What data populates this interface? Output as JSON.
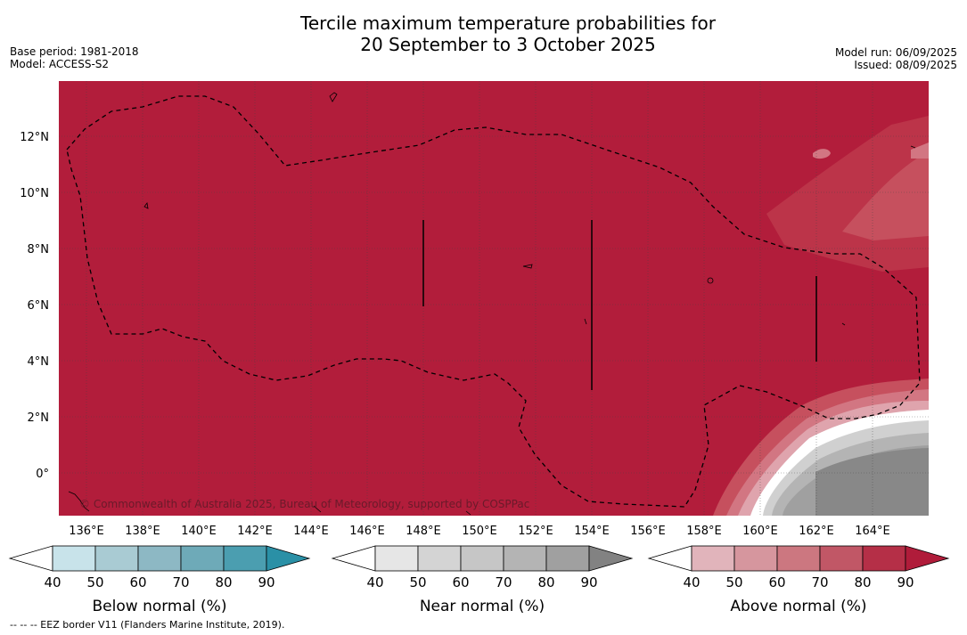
{
  "title_line1": "Tercile maximum temperature probabilities for",
  "title_line2": "20 September to 3 October 2025",
  "meta_left": {
    "base_period": "Base period: 1981-2018",
    "model": "Model: ACCESS-S2"
  },
  "meta_right": {
    "model_run": "Model run: 06/09/2025",
    "issued": "Issued: 08/09/2025"
  },
  "map": {
    "lat_ticks": [
      "12°N",
      "10°N",
      "8°N",
      "6°N",
      "4°N",
      "2°N",
      "0°"
    ],
    "lon_ticks": [
      "136°E",
      "138°E",
      "140°E",
      "142°E",
      "144°E",
      "146°E",
      "148°E",
      "150°E",
      "152°E",
      "154°E",
      "156°E",
      "158°E",
      "160°E",
      "162°E",
      "164°E"
    ],
    "copyright": "© Commonwealth of Australia 2025, Bureau of Meteorology, supported by COSPPac",
    "dominant_category": "Above normal",
    "dominant_probability_band": "80-90"
  },
  "colorbars": [
    {
      "title": "Below normal (%)",
      "ticks": [
        "40",
        "50",
        "60",
        "70",
        "80",
        "90"
      ],
      "colors": [
        "#ffffff",
        "#c8e3ea",
        "#a9cbd3",
        "#8db8c4",
        "#6eaab8",
        "#4b9eb0",
        "#2a90a6"
      ]
    },
    {
      "title": "Near normal (%)",
      "ticks": [
        "40",
        "50",
        "60",
        "70",
        "80",
        "90"
      ],
      "colors": [
        "#ffffff",
        "#e6e6e6",
        "#d4d4d4",
        "#c6c6c6",
        "#b4b4b4",
        "#a0a0a0",
        "#828282"
      ]
    },
    {
      "title": "Above normal (%)",
      "ticks": [
        "40",
        "50",
        "60",
        "70",
        "80",
        "90"
      ],
      "colors": [
        "#ffffff",
        "#e1b4bb",
        "#d6969e",
        "#cc7780",
        "#c15766",
        "#b52f47",
        "#b01c3a"
      ]
    }
  ],
  "footnote": "--  --  -- EEZ border V11 (Flanders Marine Institute, 2019).",
  "colors": {
    "above_90": "#b21d3b",
    "above_80": "#bc3449",
    "above_70": "#c6505e",
    "near_90": "#888888"
  }
}
